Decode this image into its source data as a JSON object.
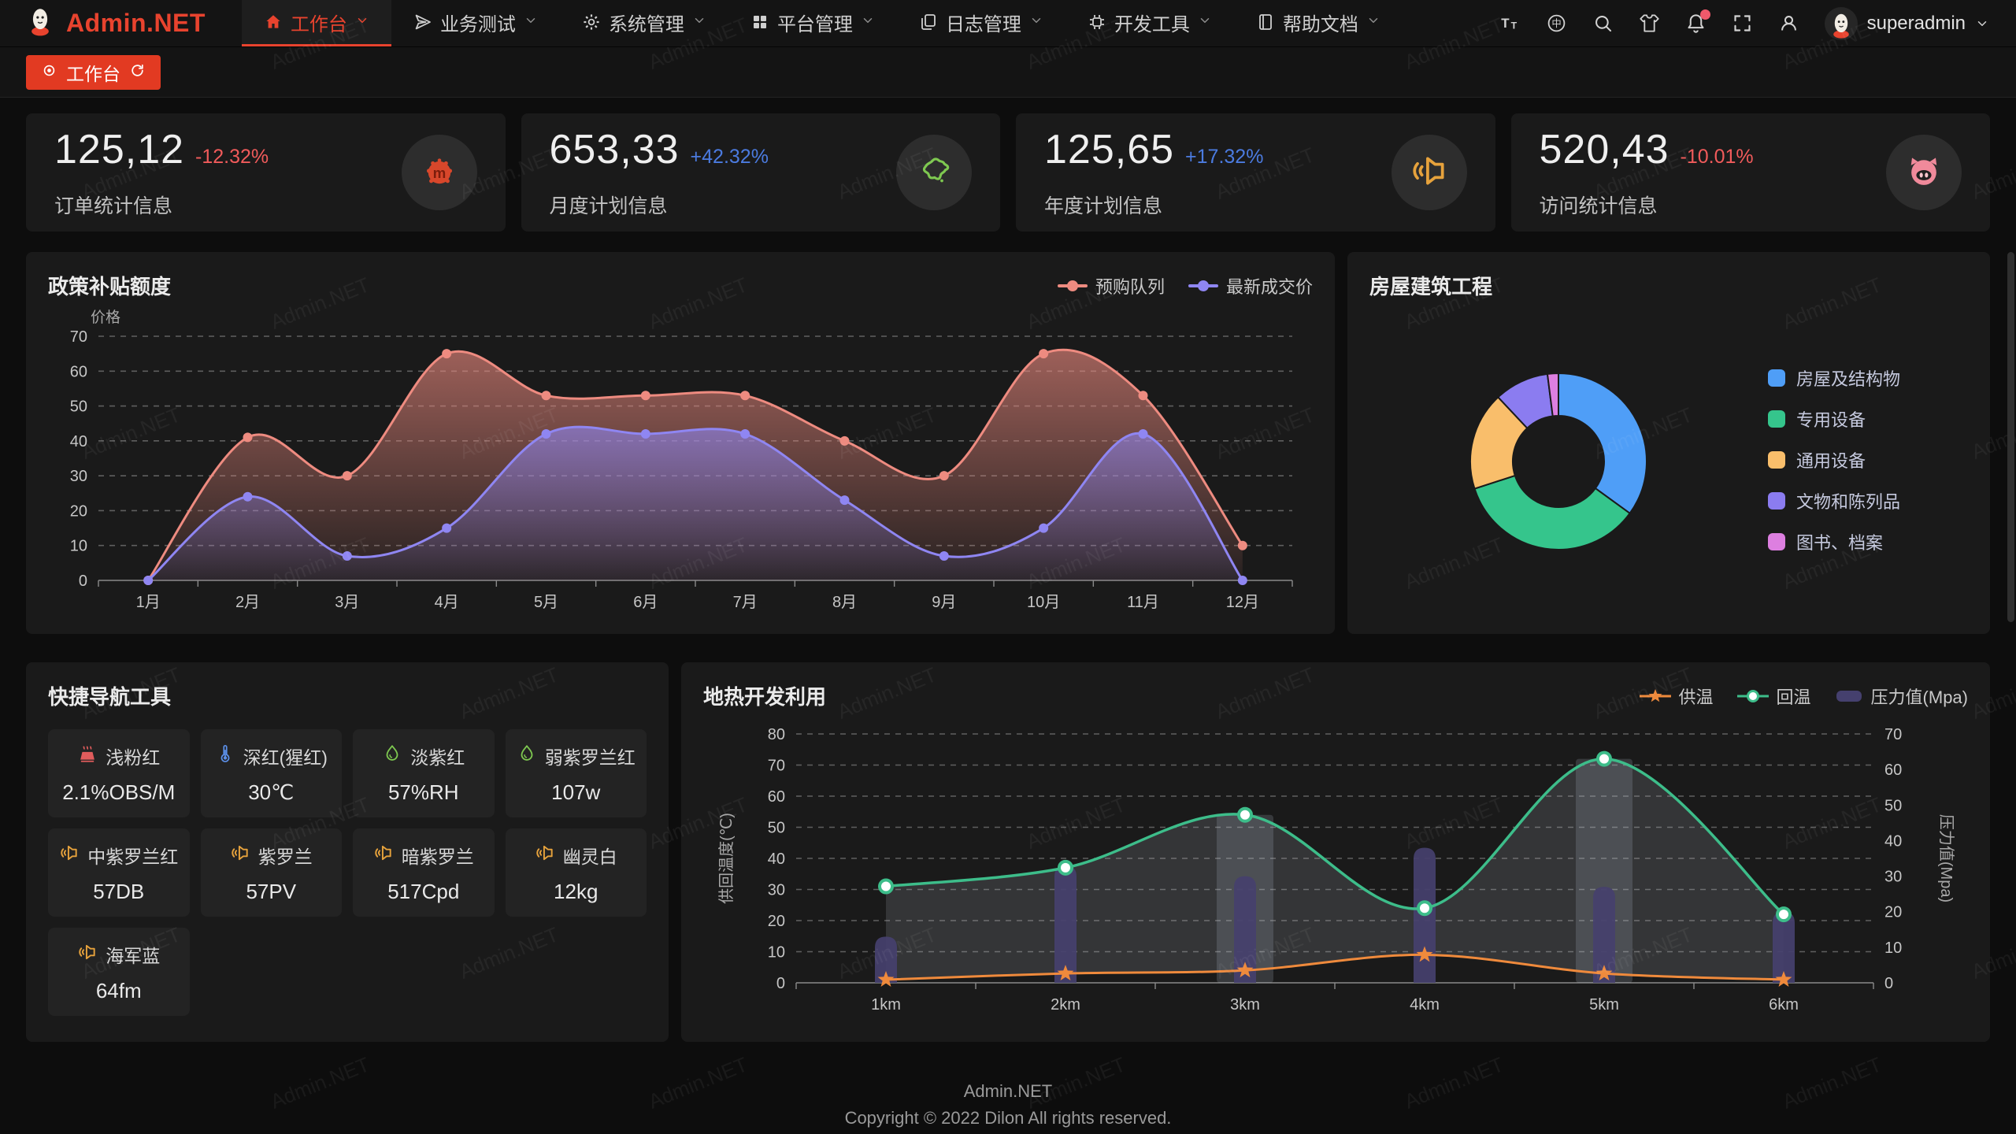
{
  "brand": {
    "name": "Admin.NET"
  },
  "colors": {
    "accent": "#e8432e",
    "up": "#4b7be0",
    "down": "#f15b5b"
  },
  "navbar": {
    "menu": [
      {
        "label": "工作台",
        "icon": "home-icon",
        "active": true
      },
      {
        "label": "业务测试",
        "icon": "send-icon",
        "active": false
      },
      {
        "label": "系统管理",
        "icon": "gear-icon",
        "active": false
      },
      {
        "label": "平台管理",
        "icon": "grid-icon",
        "active": false
      },
      {
        "label": "日志管理",
        "icon": "copy-icon",
        "active": false
      },
      {
        "label": "开发工具",
        "icon": "cpu-icon",
        "active": false
      },
      {
        "label": "帮助文档",
        "icon": "book-icon",
        "active": false
      }
    ],
    "tools": [
      "font-size-icon",
      "language-icon",
      "search-icon",
      "theme-icon",
      "bell-icon",
      "fullscreen-icon",
      "user-icon"
    ],
    "bell_badge": true,
    "user": "superadmin"
  },
  "tabbar": {
    "tabs": [
      {
        "label": "工作台",
        "active": true
      }
    ]
  },
  "stat_cards": [
    {
      "value": "125,12",
      "delta": "-12.32%",
      "trend": "down",
      "label": "订单统计信息",
      "icon": "cloud-icon",
      "icon_color": "#d8472b"
    },
    {
      "value": "653,33",
      "delta": "+42.32%",
      "trend": "up",
      "label": "月度计划信息",
      "icon": "china-map-icon",
      "icon_color": "#7ec850"
    },
    {
      "value": "125,65",
      "delta": "+17.32%",
      "trend": "up",
      "label": "年度计划信息",
      "icon": "speaker-mute-icon",
      "icon_color": "#e6a23c"
    },
    {
      "value": "520,43",
      "delta": "-10.01%",
      "trend": "down",
      "label": "访问统计信息",
      "icon": "pig-icon",
      "icon_color": "#f08a9b"
    }
  ],
  "chart_data": [
    {
      "type": "area",
      "title": "政策补贴额度",
      "ylabel": "价格",
      "categories": [
        "1月",
        "2月",
        "3月",
        "4月",
        "5月",
        "6月",
        "7月",
        "8月",
        "9月",
        "10月",
        "11月",
        "12月"
      ],
      "ylim": [
        0,
        70
      ],
      "ytick_step": 10,
      "grid": "dashed",
      "legend_position": "top-right",
      "series": [
        {
          "name": "预购队列",
          "color": "#ee8b80",
          "values": [
            0,
            41,
            30,
            65,
            53,
            53,
            53,
            40,
            30,
            65,
            53,
            10
          ]
        },
        {
          "name": "最新成交价",
          "color": "#8f86f2",
          "values": [
            0,
            24,
            7,
            15,
            42,
            42,
            42,
            23,
            7,
            15,
            42,
            0
          ]
        }
      ]
    },
    {
      "type": "pie",
      "title": "房屋建筑工程",
      "donut": true,
      "legend_position": "right",
      "slices": [
        {
          "name": "房屋及结构物",
          "value": 35,
          "color": "#4f9ef7"
        },
        {
          "name": "专用设备",
          "value": 35,
          "color": "#35c58c"
        },
        {
          "name": "通用设备",
          "value": 18,
          "color": "#f9be6b"
        },
        {
          "name": "文物和陈列品",
          "value": 10,
          "color": "#8b7cf0"
        },
        {
          "name": "图书、档案",
          "value": 2,
          "color": "#dd7fe0"
        }
      ]
    },
    {
      "type": "mixed",
      "title": "地热开发利用",
      "categories": [
        "1km",
        "2km",
        "3km",
        "4km",
        "5km",
        "6km"
      ],
      "left_axis": {
        "label": "供回温度(℃)",
        "min": 0,
        "max": 80,
        "step": 10
      },
      "right_axis": {
        "label": "压力值(Mpa)",
        "min": 0,
        "max": 70,
        "step": 10
      },
      "grid": "dashed",
      "legend_position": "top-right",
      "series": [
        {
          "name": "供温",
          "type": "line",
          "axis": "left",
          "marker": "star",
          "color": "#ef8a3c",
          "values": [
            1,
            3,
            4,
            9,
            3,
            1
          ]
        },
        {
          "name": "回温",
          "type": "line",
          "axis": "left",
          "marker": "circle",
          "color": "#3dbd8a",
          "values": [
            31,
            37,
            54,
            24,
            72,
            22
          ]
        },
        {
          "name": "压力值(Mpa)",
          "type": "bar",
          "axis": "right",
          "color": "#45406e",
          "values": [
            13,
            33,
            30,
            38,
            27,
            20
          ]
        }
      ],
      "band_fill": {
        "upper": "回温",
        "lower": "供温",
        "color": "rgba(200,208,220,0.15)"
      },
      "highlight_columns": {
        "indexes": [
          2,
          4
        ],
        "to_series": "回温",
        "color": "rgba(190,200,215,0.18)"
      }
    }
  ],
  "quick_nav": {
    "title": "快捷导航工具",
    "items": [
      {
        "label": "浅粉红",
        "value": "2.1%OBS/M",
        "icon": "heat-icon",
        "icon_color": "#e05c5c"
      },
      {
        "label": "深红(猩红)",
        "value": "30℃",
        "icon": "thermometer-icon",
        "icon_color": "#5b8fe8"
      },
      {
        "label": "淡紫红",
        "value": "57%RH",
        "icon": "water-drop-icon",
        "icon_color": "#7ec850"
      },
      {
        "label": "弱紫罗兰红",
        "value": "107w",
        "icon": "water-drop-icon",
        "icon_color": "#7ec850"
      },
      {
        "label": "中紫罗兰红",
        "value": "57DB",
        "icon": "speaker-icon",
        "icon_color": "#e6a23c"
      },
      {
        "label": "紫罗兰",
        "value": "57PV",
        "icon": "speaker-icon",
        "icon_color": "#e6a23c"
      },
      {
        "label": "暗紫罗兰",
        "value": "517Cpd",
        "icon": "speaker-icon",
        "icon_color": "#e6a23c"
      },
      {
        "label": "幽灵白",
        "value": "12kg",
        "icon": "speaker-icon",
        "icon_color": "#e6a23c"
      },
      {
        "label": "海军蓝",
        "value": "64fm",
        "icon": "speaker-icon",
        "icon_color": "#e6a23c"
      }
    ]
  },
  "footer": {
    "line1": "Admin.NET",
    "line2": "Copyright © 2022 Dilon All rights reserved."
  },
  "watermark": "Admin.NET"
}
